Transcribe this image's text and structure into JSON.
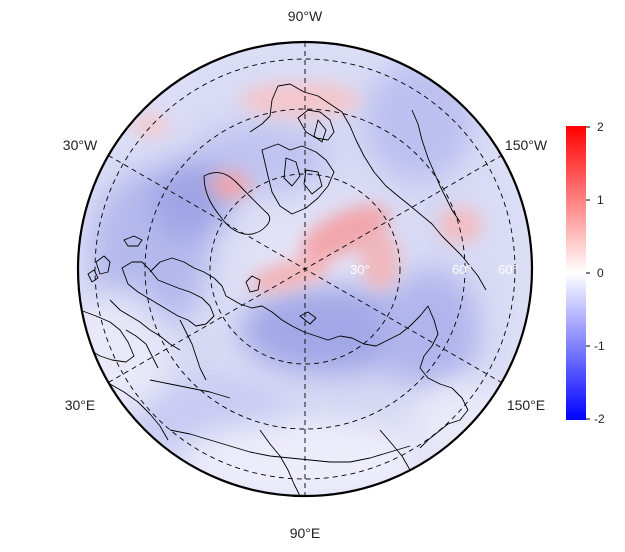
{
  "map": {
    "projection": "north-polar-stereographic",
    "longitude_labels": {
      "top": "90°W",
      "upper_left": "30°W",
      "upper_right": "150°W",
      "lower_left": "30°E",
      "lower_right": "150°E",
      "bottom": "90°E"
    },
    "latitude_labels": [
      "30°",
      "60°",
      "60°"
    ],
    "grid": "dashed"
  },
  "colorbar": {
    "ticks": [
      "2",
      "1",
      "0",
      "-1",
      "-2"
    ],
    "range": [
      -2,
      2
    ],
    "colors": {
      "max": "#ff0000",
      "mid": "#ffffff",
      "min": "#0000ff"
    }
  }
}
